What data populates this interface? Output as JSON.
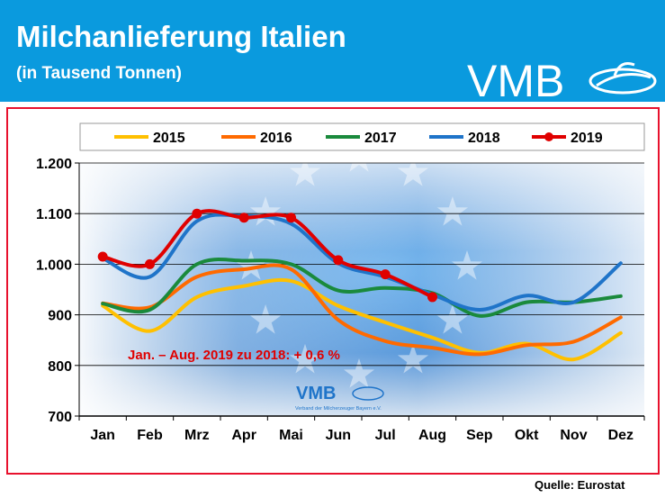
{
  "header": {
    "title": "Milchanlieferung Italien",
    "subtitle": "(in Tausend Tonnen)",
    "logo_text": "VMB"
  },
  "watermark": {
    "logo_text": "VMB",
    "tagline": "Verband der Milcherzeuger Bayern e.V."
  },
  "source": "Quelle: Eurostat",
  "colors": {
    "header_bg": "#0a9ade",
    "frame": "#e8112d",
    "plot_bg": "#0e65c0"
  },
  "chart_data": {
    "type": "line",
    "title": "Milchanlieferung Italien",
    "subtitle": "(in Tausend Tonnen)",
    "categories": [
      "Jan",
      "Feb",
      "Mrz",
      "Apr",
      "Mai",
      "Jun",
      "Jul",
      "Aug",
      "Sep",
      "Okt",
      "Nov",
      "Dez"
    ],
    "ylim": [
      700,
      1200
    ],
    "yticks": [
      700,
      800,
      900,
      1000,
      1100,
      1200
    ],
    "ytick_labels": [
      "700",
      "800",
      "900",
      "1.000",
      "1.100",
      "1.200"
    ],
    "grid": true,
    "legend_position": "top",
    "series": [
      {
        "name": "2015",
        "color": "#ffc000",
        "markers": false,
        "values": [
          918,
          868,
          935,
          957,
          967,
          918,
          885,
          855,
          825,
          843,
          812,
          864
        ]
      },
      {
        "name": "2016",
        "color": "#ff6a00",
        "markers": false,
        "values": [
          923,
          915,
          975,
          990,
          990,
          890,
          848,
          835,
          822,
          840,
          847,
          895
        ]
      },
      {
        "name": "2017",
        "color": "#1a8a3c",
        "markers": false,
        "values": [
          922,
          910,
          1000,
          1007,
          1000,
          948,
          953,
          943,
          898,
          925,
          925,
          937
        ]
      },
      {
        "name": "2018",
        "color": "#1f74c9",
        "markers": false,
        "values": [
          1012,
          975,
          1085,
          1095,
          1080,
          1002,
          975,
          940,
          910,
          938,
          925,
          1002
        ]
      },
      {
        "name": "2019",
        "color": "#e00000",
        "markers": true,
        "values": [
          1015,
          1000,
          1100,
          1092,
          1092,
          1008,
          980,
          935,
          null,
          null,
          null,
          null
        ]
      }
    ],
    "annotation": "Jan. – Aug. 2019 zu 2018: + 0,6 %"
  }
}
